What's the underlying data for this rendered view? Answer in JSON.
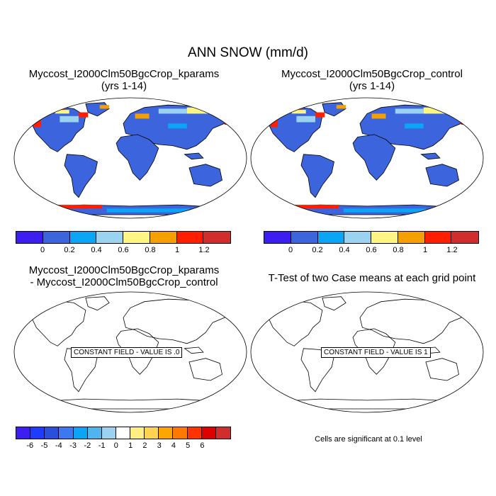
{
  "main_title": "ANN SNOW (mm/d)",
  "panels": [
    {
      "title_line1": "Myccost_I2000Clm50BgcCrop_kparams",
      "title_line2": "(yrs 1-14)"
    },
    {
      "title_line1": "Myccost_I2000Clm50BgcCrop_control",
      "title_line2": "(yrs 1-14)"
    },
    {
      "title_line1": "Myccost_I2000Clm50BgcCrop_kparams",
      "title_line2": "- Myccost_I2000Clm50BgcCrop_control",
      "constant_label": "CONSTANT FIELD - VALUE IS .0"
    },
    {
      "title_line1": "T-Test of two Case means at each grid point",
      "constant_label": "CONSTANT FIELD - VALUE IS 1"
    }
  ],
  "colorbar_top": {
    "colors": [
      "#3c1ef0",
      "#3c64dc",
      "#0aa5f5",
      "#9bd2f0",
      "#fff582",
      "#f5a000",
      "#ff1e00",
      "#d22d2d"
    ],
    "ticks": [
      "0",
      "0.2",
      "0.4",
      "0.6",
      "0.8",
      "1",
      "1.2"
    ]
  },
  "colorbar_diff": {
    "colors": [
      "#3c1ef0",
      "#1e3cff",
      "#2850dc",
      "#3c78f0",
      "#0aa5f5",
      "#50b4f0",
      "#9bd2f0",
      "#ffffff",
      "#ffee82",
      "#ffd250",
      "#ffa500",
      "#ff7800",
      "#ff3200",
      "#dc0000",
      "#d22d2d"
    ],
    "ticks": [
      "-6",
      "-5",
      "-4",
      "-3",
      "-2",
      "-1",
      "0",
      "1",
      "2",
      "3",
      "4",
      "5",
      "6"
    ]
  },
  "significance_note": "Cells are significant at 0.1 level",
  "map_colors": {
    "ocean": "#ffffff",
    "land": "#3c64dc"
  }
}
